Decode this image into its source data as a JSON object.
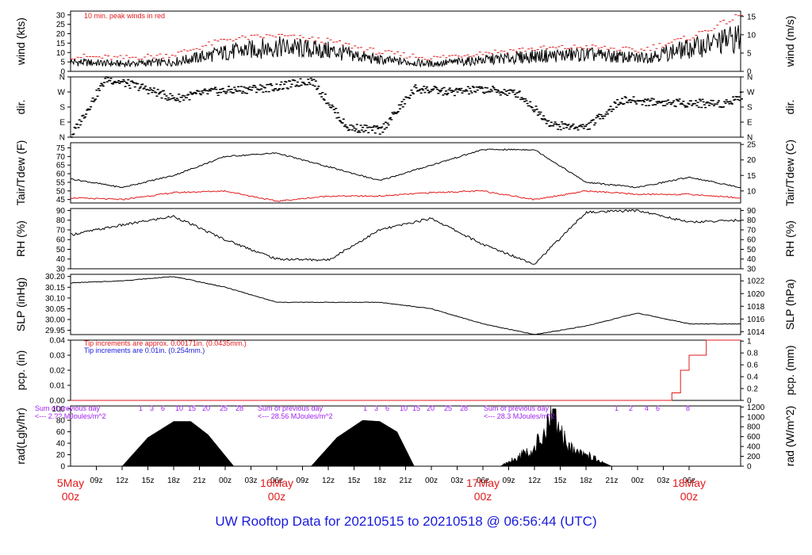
{
  "footer_title": "UW Rooftop Data for 20210515  to  20210518 @ 06:56:44  (UTC)",
  "colors": {
    "axis": "#000000",
    "peak": "#e31a1c",
    "dew": "#e31a1c",
    "note_red": "#e31a1c",
    "note_blue": "#1a1adc",
    "solar_note": "#a020f0",
    "date": "#e31a1c",
    "footer": "#1a1adc"
  },
  "time_axis": {
    "tick_labels": [
      "09z",
      "12z",
      "15z",
      "18z",
      "21z",
      "00z",
      "03z",
      "06z",
      "09z",
      "12z",
      "15z",
      "18z",
      "21z",
      "00z",
      "03z",
      "06z",
      "09z",
      "12z",
      "15z",
      "18z",
      "21z",
      "00z",
      "03z",
      "06z"
    ],
    "date_labels": [
      {
        "day": "5May",
        "hour": "00z"
      },
      {
        "day": "16May",
        "hour": "00z"
      },
      {
        "day": "17May",
        "hour": "00z"
      },
      {
        "day": "18May",
        "hour": "00z"
      }
    ]
  },
  "panels": {
    "wind": {
      "left_label": "wind (kts)",
      "right_label": "wind (m/s)",
      "left_ticks": [
        "30",
        "25",
        "20",
        "15",
        "10",
        "5",
        "0"
      ],
      "right_ticks": [
        "15",
        "10",
        "5",
        "0"
      ],
      "annotation": "10 min. peak winds in red"
    },
    "dir": {
      "left_label": "dir.",
      "right_label": "dir.",
      "left_ticks": [
        "N",
        "W",
        "S",
        "E",
        "N"
      ],
      "right_ticks": [
        "N",
        "W",
        "S",
        "E",
        "N"
      ]
    },
    "temp": {
      "left_label": "Tair/Tdew (F)",
      "right_label": "Tair/Tdew (C)",
      "left_ticks": [
        "75",
        "70",
        "65",
        "60",
        "55",
        "50",
        "45"
      ],
      "right_ticks": [
        "25",
        "20",
        "15",
        "10"
      ]
    },
    "rh": {
      "left_label": "RH (%)",
      "right_label": "RH (%)",
      "left_ticks": [
        "90",
        "80",
        "70",
        "60",
        "50",
        "40",
        "30"
      ],
      "right_ticks": [
        "90",
        "80",
        "70",
        "60",
        "50",
        "40",
        "30"
      ]
    },
    "slp": {
      "left_label": "SLP (inHg)",
      "right_label": "SLP (hPa)",
      "left_ticks": [
        "30.20",
        "30.15",
        "30.10",
        "30.05",
        "30.00",
        "29.95"
      ],
      "right_ticks": [
        "1022",
        "1020",
        "1018",
        "1016",
        "1014"
      ]
    },
    "pcp": {
      "left_label": "pcp. (in)",
      "right_label": "pcp. (mm)",
      "left_ticks": [
        "0.04",
        "0.03",
        "0.02",
        "0.01",
        "0.00"
      ],
      "right_ticks": [
        "1",
        "0.8",
        "0.6",
        "0.4",
        "0.2",
        "0"
      ],
      "note_red": "Tip increments are approx. 0.00171in. (0.0435mm.)",
      "note_blue": "Tip increments are 0.01in. (0.254mm.)"
    },
    "rad": {
      "left_label": "rad(Lgly/hr)",
      "right_label": "rad (W/m^2)",
      "left_ticks": [
        "100",
        "80",
        "60",
        "40",
        "20",
        "0"
      ],
      "right_ticks": [
        "1200",
        "1000",
        "800",
        "600",
        "400",
        "200",
        "0"
      ],
      "prev_day_notes": [
        {
          "label": "Sum of previous day",
          "value": "<--- 2.?? MJoules/m^2"
        },
        {
          "label": "Sum of previous day",
          "value": "<--- 28.56 MJoules/m^2"
        },
        {
          "label": "Sum of previous day",
          "value": "<--- 28.3 MJoules/m^2"
        }
      ],
      "hour_marks": [
        [
          "1",
          "3",
          "6",
          "10",
          "15",
          "20",
          "25",
          "28"
        ],
        [
          "1",
          "3",
          "6",
          "10",
          "15",
          "20",
          "25",
          "28"
        ],
        [
          "1",
          "2",
          "4",
          "6",
          "8"
        ]
      ]
    }
  },
  "chart_data": [
    {
      "type": "line",
      "title": "",
      "xlabel": "",
      "ylabel": "wind (kts)",
      "ylim": [
        0,
        32
      ],
      "x": [
        0,
        6,
        12,
        18,
        24,
        30,
        36,
        42,
        48,
        54,
        60,
        66,
        72,
        78
      ],
      "series": [
        {
          "values": [
            5,
            4,
            5,
            10,
            13,
            11,
            6,
            4,
            6,
            8,
            9,
            7,
            12,
            18
          ]
        },
        {
          "name": "10 min. peak winds in red",
          "values": [
            8,
            7,
            9,
            17,
            19,
            16,
            10,
            7,
            10,
            12,
            13,
            11,
            18,
            30
          ]
        }
      ]
    },
    {
      "type": "scatter",
      "ylabel": "dir.",
      "ylim": [
        0,
        360
      ],
      "x": [
        0,
        4,
        8,
        12,
        16,
        20,
        24,
        28,
        32,
        36,
        40,
        44,
        48,
        52,
        56,
        60,
        64,
        70,
        76,
        78
      ],
      "series": [
        {
          "values": [
            10,
            350,
            300,
            230,
            270,
            285,
            300,
            340,
            60,
            40,
            290,
            270,
            285,
            260,
            70,
            60,
            220,
            205,
            200,
            250
          ]
        }
      ]
    },
    {
      "type": "line",
      "ylabel": "Tair/Tdew (F)",
      "ylim": [
        43,
        78
      ],
      "x": [
        0,
        6,
        12,
        18,
        24,
        30,
        36,
        42,
        48,
        54,
        60,
        66,
        72,
        78
      ],
      "series": [
        {
          "name": "Tair",
          "values": [
            57,
            52,
            59,
            70,
            72,
            64,
            56,
            65,
            74,
            74,
            55,
            52,
            58,
            52
          ]
        },
        {
          "name": "Tdew",
          "values": [
            46,
            45,
            49,
            50,
            44,
            47,
            47,
            49,
            50,
            45,
            50,
            48,
            48,
            46
          ]
        }
      ]
    },
    {
      "type": "line",
      "ylabel": "RH (%)",
      "ylim": [
        30,
        92
      ],
      "x": [
        0,
        6,
        12,
        18,
        24,
        30,
        36,
        42,
        48,
        54,
        60,
        66,
        72,
        78
      ],
      "series": [
        {
          "values": [
            65,
            75,
            84,
            60,
            40,
            39,
            70,
            82,
            55,
            35,
            88,
            90,
            78,
            80
          ]
        }
      ]
    },
    {
      "type": "line",
      "ylabel": "SLP (inHg)",
      "ylim": [
        29.93,
        30.21
      ],
      "x": [
        0,
        6,
        12,
        18,
        24,
        30,
        36,
        42,
        48,
        54,
        60,
        66,
        72,
        78
      ],
      "series": [
        {
          "values": [
            30.17,
            30.18,
            30.2,
            30.15,
            30.08,
            30.08,
            30.08,
            30.05,
            29.98,
            29.93,
            29.97,
            30.03,
            29.98,
            29.98
          ]
        }
      ]
    },
    {
      "type": "line",
      "ylabel": "pcp. (in)",
      "ylim": [
        0,
        0.04
      ],
      "x": [
        0,
        69,
        70,
        71,
        72,
        74,
        78
      ],
      "series": [
        {
          "values": [
            0,
            0,
            0.005,
            0.02,
            0.03,
            0.04,
            0.04
          ]
        }
      ]
    },
    {
      "type": "area",
      "ylabel": "rad(Lgly/hr)",
      "ylim": [
        0,
        105
      ],
      "x": [
        0,
        4,
        6,
        9,
        12,
        14,
        16,
        19,
        22,
        24,
        26,
        28,
        31,
        34,
        36,
        38,
        40,
        43,
        46,
        48,
        50,
        52,
        54,
        56,
        58,
        60,
        63,
        66,
        68,
        70,
        72,
        78
      ],
      "series": [
        {
          "values": [
            0,
            0,
            0,
            50,
            78,
            78,
            55,
            0,
            0,
            0,
            0,
            0,
            50,
            80,
            78,
            60,
            0,
            0,
            0,
            0,
            0,
            15,
            30,
            80,
            35,
            20,
            0,
            0,
            0,
            0,
            0,
            0
          ]
        }
      ]
    }
  ]
}
